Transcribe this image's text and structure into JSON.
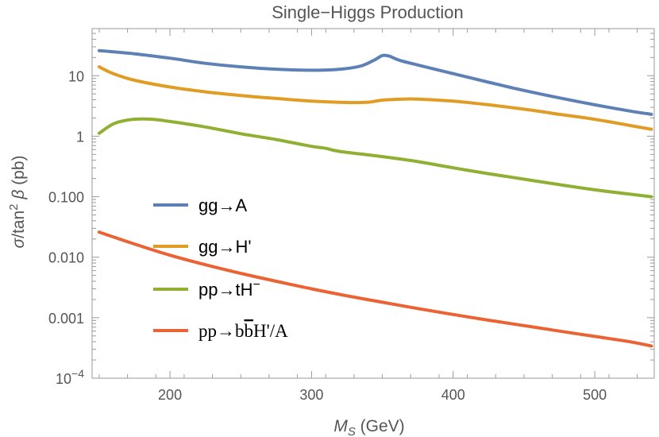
{
  "chart_data": {
    "type": "line",
    "title": "Single−Higgs Production",
    "xlabel": "M_S (GeV)",
    "xlabel_main": "M",
    "xlabel_sub": "S",
    "xlabel_unit": "(GeV)",
    "ylabel": "σ/tan²β (pb)",
    "ylabel_sigma": "σ",
    "ylabel_mid": "/tan",
    "ylabel_sup": "2",
    "ylabel_beta": "β",
    "ylabel_unit": "(pb)",
    "yscale": "log",
    "xlim": [
      145,
      542
    ],
    "ylim": [
      0.0001,
      60
    ],
    "x_ticks": [
      {
        "value": 200,
        "label": "200"
      },
      {
        "value": 300,
        "label": "300"
      },
      {
        "value": 400,
        "label": "400"
      },
      {
        "value": 500,
        "label": "500"
      }
    ],
    "y_ticks": [
      {
        "value": 0.0001,
        "label": "10",
        "sup": "−4"
      },
      {
        "value": 0.001,
        "label": "0.001"
      },
      {
        "value": 0.01,
        "label": "0.010"
      },
      {
        "value": 0.1,
        "label": "0.100"
      },
      {
        "value": 1,
        "label": "1"
      },
      {
        "value": 10,
        "label": "10"
      }
    ],
    "series": [
      {
        "name": "gg→A",
        "color": "#5e81b5",
        "x": [
          150,
          175,
          200,
          225,
          250,
          275,
          300,
          320,
          335,
          345,
          350,
          355,
          362,
          375,
          400,
          425,
          450,
          475,
          500,
          525,
          540
        ],
        "y": [
          26,
          23,
          19.5,
          16,
          14,
          12.8,
          12.3,
          12.8,
          14.5,
          18.5,
          21.5,
          21,
          18,
          15,
          10.8,
          7.8,
          5.7,
          4.3,
          3.3,
          2.6,
          2.3
        ]
      },
      {
        "name": "gg→H'",
        "color": "#e19c24",
        "x": [
          150,
          160,
          175,
          200,
          225,
          250,
          275,
          300,
          325,
          340,
          350,
          365,
          375,
          400,
          425,
          450,
          475,
          500,
          525,
          540
        ],
        "y": [
          14,
          10.8,
          8.4,
          6.5,
          5.4,
          4.7,
          4.2,
          3.8,
          3.6,
          3.65,
          3.95,
          4.1,
          4.1,
          3.8,
          3.3,
          2.8,
          2.3,
          1.9,
          1.5,
          1.3
        ]
      },
      {
        "name": "pp→tH⁻",
        "color": "#8fb032",
        "x": [
          150,
          160,
          170,
          180,
          190,
          200,
          225,
          250,
          275,
          300,
          310,
          320,
          350,
          375,
          400,
          425,
          450,
          475,
          500,
          525,
          540
        ],
        "y": [
          1.12,
          1.6,
          1.85,
          1.92,
          1.88,
          1.75,
          1.42,
          1.1,
          0.88,
          0.68,
          0.63,
          0.56,
          0.46,
          0.38,
          0.3,
          0.24,
          0.195,
          0.158,
          0.13,
          0.11,
          0.1
        ]
      },
      {
        "name": "pp→bb̅H'/A",
        "color": "#eb6235",
        "x": [
          150,
          175,
          200,
          225,
          250,
          275,
          300,
          325,
          350,
          375,
          400,
          425,
          450,
          475,
          500,
          525,
          540
        ],
        "y": [
          0.026,
          0.0165,
          0.0108,
          0.0075,
          0.0054,
          0.004,
          0.003,
          0.0023,
          0.0018,
          0.00142,
          0.00113,
          0.00091,
          0.00074,
          0.0006,
          0.00049,
          0.0004,
          0.00034
        ]
      }
    ],
    "legend": {
      "position": "center-left",
      "entries": [
        {
          "label": "gg→A"
        },
        {
          "label": "gg→H'"
        },
        {
          "label": "pp→tH⁻",
          "main": "pp→tH",
          "sup": "−"
        },
        {
          "label": "pp→bb̅H'/A",
          "p1": "pp→b",
          "bbar": "b",
          "p2": "H'/A"
        }
      ]
    }
  }
}
